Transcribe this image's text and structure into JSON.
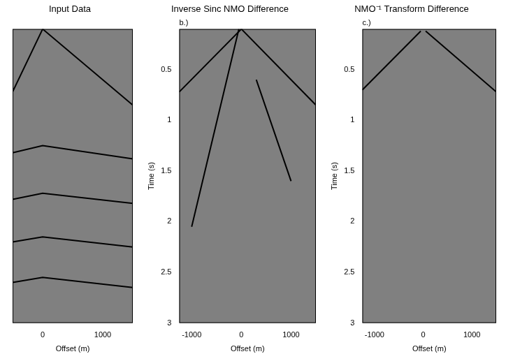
{
  "chart_data": [
    {
      "type": "line",
      "title": "Input Data",
      "xlabel": "Offset (m)",
      "xlim": [
        -500,
        1500
      ],
      "xticks": [
        0,
        1000
      ],
      "ylim": [
        0.1,
        3
      ],
      "tick_labels": "x",
      "grid": false,
      "series": [
        {
          "color": "#000000",
          "x": [
            0,
            -500
          ],
          "values": [
            0.1,
            0.72
          ]
        },
        {
          "color": "#000000",
          "x": [
            0,
            1500
          ],
          "values": [
            0.1,
            0.85
          ]
        },
        {
          "color": "#000000",
          "x": [
            -500,
            0,
            1500
          ],
          "values": [
            1.32,
            1.25,
            1.38
          ]
        },
        {
          "color": "#000000",
          "x": [
            -500,
            0,
            1500
          ],
          "values": [
            1.78,
            1.72,
            1.82
          ]
        },
        {
          "color": "#000000",
          "x": [
            -500,
            0,
            1500
          ],
          "values": [
            2.2,
            2.15,
            2.25
          ]
        },
        {
          "color": "#000000",
          "x": [
            -500,
            0,
            1500
          ],
          "values": [
            2.6,
            2.55,
            2.65
          ]
        }
      ]
    },
    {
      "type": "line",
      "title": "Inverse Sinc NMO Difference",
      "annotations": [
        "b.)"
      ],
      "xlabel": "Offset (m)",
      "ylabel": "Time (s)",
      "xlim": [
        -1250,
        1500
      ],
      "xticks": [
        -1000,
        0,
        1000
      ],
      "ylim": [
        0.1,
        3
      ],
      "yticks": [
        0.5,
        1,
        1.5,
        2,
        2.5,
        3
      ],
      "grid": false,
      "series": [
        {
          "color": "#000000",
          "x": [
            0,
            -1250
          ],
          "values": [
            0.1,
            0.72
          ]
        },
        {
          "color": "#000000",
          "x": [
            0,
            1500
          ],
          "values": [
            0.1,
            0.85
          ]
        },
        {
          "color": "#000000",
          "x": [
            -50,
            -1000
          ],
          "values": [
            0.1,
            2.05
          ]
        },
        {
          "color": "#000000",
          "x": [
            300,
            1000
          ],
          "values": [
            0.6,
            1.6
          ]
        }
      ]
    },
    {
      "type": "line",
      "title": "NMO⁻¹ Transform Difference",
      "annotations": [
        "c.)"
      ],
      "xlabel": "Offset (m)",
      "ylabel": "Time (s)",
      "xlim": [
        -1250,
        1500
      ],
      "xticks": [
        -1000,
        0,
        1000
      ],
      "ylim": [
        0.1,
        3
      ],
      "yticks": [
        0.5,
        1,
        1.5,
        2,
        2.5,
        3
      ],
      "grid": false,
      "series": [
        {
          "color": "#000000",
          "x": [
            -1250,
            -50
          ],
          "values": [
            0.7,
            0.12
          ]
        },
        {
          "color": "#000000",
          "x": [
            50,
            1500
          ],
          "values": [
            0.12,
            0.72
          ]
        }
      ]
    }
  ]
}
